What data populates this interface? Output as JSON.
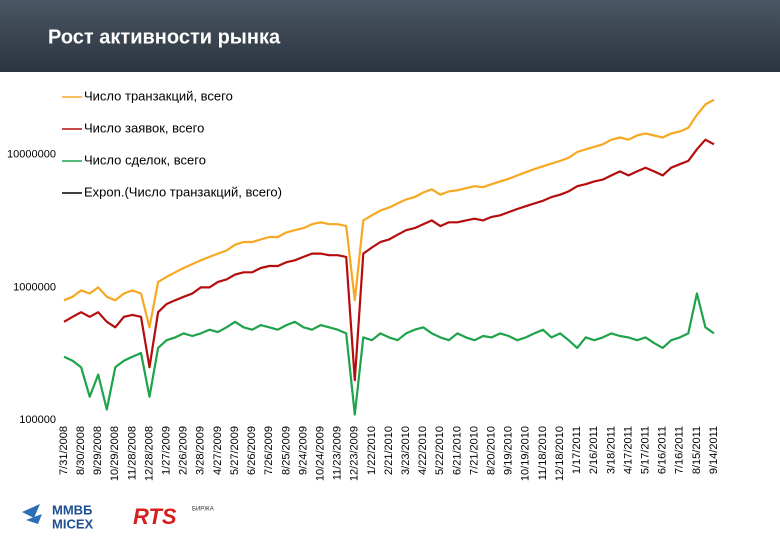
{
  "chart_data": {
    "type": "line",
    "title": "Рост активности рынка",
    "categories": [
      "7/31/2008",
      null,
      "8/30/2008",
      null,
      "9/29/2008",
      null,
      "10/29/2008",
      null,
      "11/28/2008",
      null,
      "12/28/2008",
      null,
      "1/27/2009",
      null,
      "2/26/2009",
      null,
      "3/28/2009",
      null,
      "4/27/2009",
      null,
      "5/27/2009",
      null,
      "6/26/2009",
      null,
      "7/26/2009",
      null,
      "8/25/2009",
      null,
      "9/24/2009",
      null,
      "10/24/2009",
      null,
      "11/23/2009",
      null,
      "12/23/2009",
      null,
      "1/22/2010",
      null,
      "2/21/2010",
      null,
      "3/23/2010",
      null,
      "4/22/2010",
      null,
      "5/22/2010",
      null,
      "6/21/2010",
      null,
      "7/21/2010",
      null,
      "8/20/2010",
      null,
      "9/19/2010",
      null,
      "10/19/2010",
      null,
      "11/18/2010",
      null,
      "12/18/2010",
      null,
      "1/17/2011",
      null,
      "2/16/2011",
      null,
      "3/18/2011",
      null,
      "4/17/2011",
      null,
      "5/17/2011",
      null,
      "6/16/2011",
      null,
      "7/16/2011",
      null,
      "8/15/2011",
      null,
      "9/14/2011"
    ],
    "series": [
      {
        "name": "Число транзакций, всего",
        "color": "#f7a823",
        "values": [
          800000,
          850000,
          950000,
          900000,
          1000000,
          850000,
          800000,
          900000,
          950000,
          900000,
          500000,
          1100000,
          1200000,
          1300000,
          1400000,
          1500000,
          1600000,
          1700000,
          1800000,
          1900000,
          2100000,
          2200000,
          2200000,
          2300000,
          2400000,
          2400000,
          2600000,
          2700000,
          2800000,
          3000000,
          3100000,
          3000000,
          3000000,
          2900000,
          800000,
          3200000,
          3500000,
          3800000,
          4000000,
          4300000,
          4600000,
          4800000,
          5200000,
          5500000,
          5000000,
          5300000,
          5400000,
          5600000,
          5800000,
          5700000,
          6000000,
          6300000,
          6600000,
          7000000,
          7400000,
          7800000,
          8200000,
          8600000,
          9000000,
          9500000,
          10500000,
          11000000,
          11500000,
          12000000,
          13000000,
          13500000,
          13000000,
          14000000,
          14500000,
          14000000,
          13500000,
          14500000,
          15000000,
          16000000,
          20000000,
          24000000,
          26000000
        ]
      },
      {
        "name": "Число заявок, всего",
        "color": "#b50d0d",
        "values": [
          550000,
          600000,
          650000,
          600000,
          650000,
          550000,
          500000,
          600000,
          620000,
          600000,
          250000,
          650000,
          750000,
          800000,
          850000,
          900000,
          1000000,
          1000000,
          1100000,
          1150000,
          1250000,
          1300000,
          1300000,
          1400000,
          1450000,
          1450000,
          1550000,
          1600000,
          1700000,
          1800000,
          1800000,
          1750000,
          1750000,
          1700000,
          200000,
          1800000,
          2000000,
          2200000,
          2300000,
          2500000,
          2700000,
          2800000,
          3000000,
          3200000,
          2900000,
          3100000,
          3100000,
          3200000,
          3300000,
          3200000,
          3400000,
          3500000,
          3700000,
          3900000,
          4100000,
          4300000,
          4500000,
          4800000,
          5000000,
          5300000,
          5800000,
          6000000,
          6300000,
          6500000,
          7000000,
          7500000,
          7000000,
          7500000,
          8000000,
          7500000,
          7000000,
          8000000,
          8500000,
          9000000,
          11000000,
          13000000,
          12000000
        ]
      },
      {
        "name": "Число сделок, всего",
        "color": "#1ea34a",
        "values": [
          300000,
          280000,
          250000,
          150000,
          220000,
          120000,
          250000,
          280000,
          300000,
          320000,
          150000,
          350000,
          400000,
          420000,
          450000,
          430000,
          450000,
          480000,
          460000,
          500000,
          550000,
          500000,
          480000,
          520000,
          500000,
          480000,
          520000,
          550000,
          500000,
          480000,
          520000,
          500000,
          480000,
          450000,
          110000,
          420000,
          400000,
          450000,
          420000,
          400000,
          450000,
          480000,
          500000,
          450000,
          420000,
          400000,
          450000,
          420000,
          400000,
          430000,
          420000,
          450000,
          430000,
          400000,
          420000,
          450000,
          480000,
          420000,
          450000,
          400000,
          350000,
          420000,
          400000,
          420000,
          450000,
          430000,
          420000,
          400000,
          420000,
          380000,
          350000,
          400000,
          420000,
          450000,
          900000,
          500000,
          450000
        ]
      },
      {
        "name": "Expon.(Число транзакций, всего)",
        "color": "#000000",
        "values": [
          null,
          null,
          null,
          null,
          null,
          null,
          null,
          null,
          null,
          null,
          null,
          null,
          null,
          null,
          null,
          null,
          null,
          null,
          null,
          null,
          null,
          null,
          null,
          null,
          null,
          null,
          null,
          null,
          null,
          null,
          null,
          null,
          null,
          null,
          null,
          null,
          null,
          null,
          null,
          null,
          null,
          null,
          null,
          null,
          null,
          null,
          null,
          null,
          null,
          null,
          null,
          null,
          null,
          null,
          null,
          null,
          null,
          null,
          null,
          null,
          null,
          null,
          null,
          null,
          null,
          null,
          null,
          null,
          null,
          null,
          null,
          null,
          null,
          null,
          null,
          null,
          null
        ]
      }
    ],
    "ylim": [
      100000,
      40000000
    ],
    "yticks": [
      100000,
      1000000,
      10000000
    ],
    "log_scale": true,
    "grid": false,
    "legend": "top-left",
    "logos": [
      "ММВБ",
      "MICEX",
      "RTS",
      "БИРЖА"
    ]
  }
}
